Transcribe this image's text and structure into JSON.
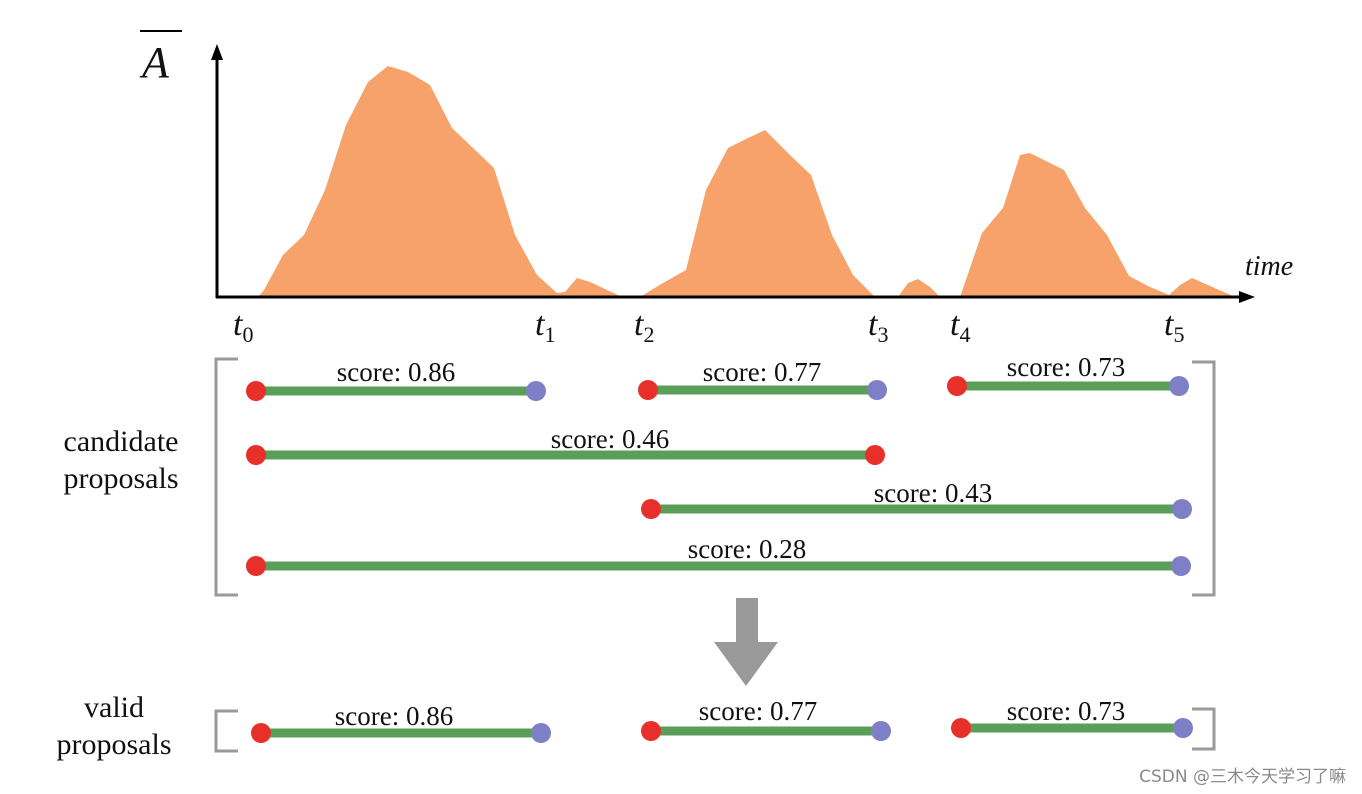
{
  "y_axis_label": "A",
  "x_axis_label": "time",
  "time_marks": [
    {
      "base": "t",
      "sub": "0"
    },
    {
      "base": "t",
      "sub": "1"
    },
    {
      "base": "t",
      "sub": "2"
    },
    {
      "base": "t",
      "sub": "3"
    },
    {
      "base": "t",
      "sub": "4"
    },
    {
      "base": "t",
      "sub": "5"
    }
  ],
  "groups": {
    "candidate": {
      "label_line1": "candidate",
      "label_line2": "proposals",
      "proposals": [
        {
          "label": "score: 0.86",
          "start": "t0",
          "end": "t1"
        },
        {
          "label": "score: 0.77",
          "start": "t2",
          "end": "t3"
        },
        {
          "label": "score: 0.73",
          "start": "t4",
          "end": "t5"
        },
        {
          "label": "score: 0.46",
          "start": "t0",
          "end": "t3"
        },
        {
          "label": "score: 0.43",
          "start": "t2",
          "end": "t5"
        },
        {
          "label": "score: 0.28",
          "start": "t0",
          "end": "t5"
        }
      ]
    },
    "valid": {
      "label_line1": "valid",
      "label_line2": "proposals",
      "proposals": [
        {
          "label": "score: 0.86",
          "start": "t0",
          "end": "t1"
        },
        {
          "label": "score: 0.77",
          "start": "t2",
          "end": "t3"
        },
        {
          "label": "score: 0.73",
          "start": "t4",
          "end": "t5"
        }
      ]
    }
  },
  "watermark": "CSDN @三木今天学习了嘛",
  "colors": {
    "curve_fill": "#f7a26a",
    "axis": "#000000",
    "bar": "#5b9e59",
    "start_dot": "#e8302a",
    "end_dot": "#7d80c6",
    "bracket": "#9a9a9a",
    "arrow": "#999999"
  }
}
